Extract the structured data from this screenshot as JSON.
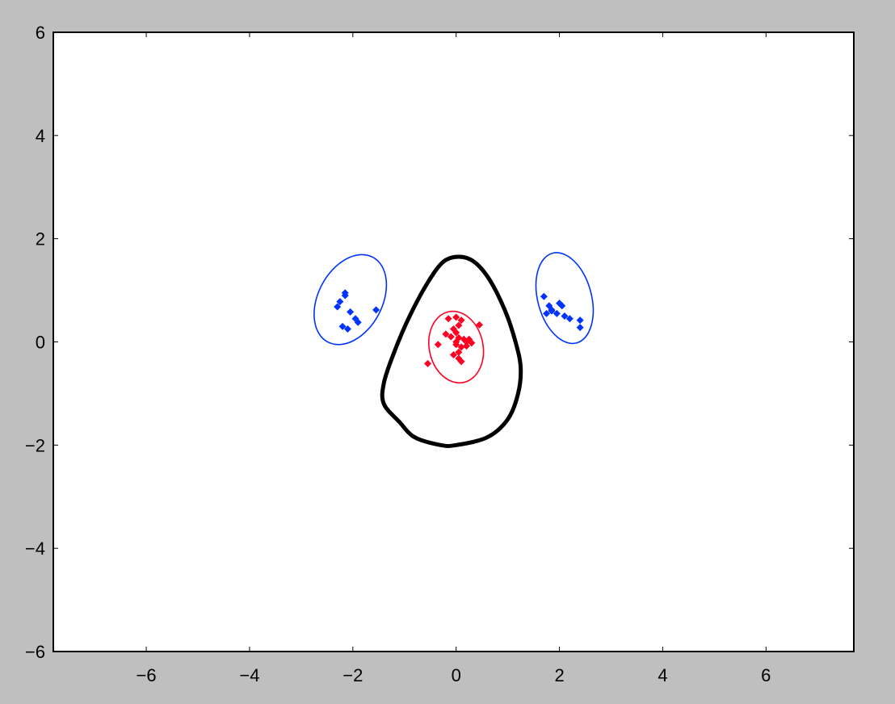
{
  "chart_data": {
    "type": "scatter",
    "xlim": [
      -7.8,
      7.7
    ],
    "ylim": [
      -6,
      6
    ],
    "x_ticks": [
      -6,
      -4,
      -2,
      0,
      2,
      4,
      6
    ],
    "y_ticks": [
      -6,
      -4,
      -2,
      0,
      2,
      4,
      6
    ],
    "x_tick_labels": [
      "−6",
      "−4",
      "−2",
      "0",
      "2",
      "4",
      "6"
    ],
    "y_tick_labels": [
      "−6",
      "−4",
      "−2",
      "0",
      "2",
      "4",
      "6"
    ],
    "grid": false,
    "colors": {
      "figure_bg": "#bfbfbf",
      "axes_bg": "#ffffff",
      "class_a": "#0033ff",
      "class_b": "#ff0022",
      "boundary": "#000000"
    },
    "series": [
      {
        "color": "#0033ff",
        "points": [
          [
            -2.15,
            0.95
          ],
          [
            -2.15,
            0.9
          ],
          [
            -2.25,
            0.78
          ],
          [
            -2.3,
            0.68
          ],
          [
            -2.05,
            0.58
          ],
          [
            -1.95,
            0.45
          ],
          [
            -1.9,
            0.38
          ],
          [
            -1.55,
            0.62
          ],
          [
            -2.2,
            0.3
          ],
          [
            -2.1,
            0.25
          ],
          [
            1.7,
            0.88
          ],
          [
            1.8,
            0.7
          ],
          [
            1.85,
            0.6
          ],
          [
            1.75,
            0.55
          ],
          [
            2.0,
            0.75
          ],
          [
            2.05,
            0.7
          ],
          [
            1.95,
            0.55
          ],
          [
            2.1,
            0.5
          ],
          [
            2.2,
            0.45
          ],
          [
            2.4,
            0.42
          ],
          [
            2.4,
            0.28
          ],
          [
            1.85,
            0.62
          ]
        ]
      },
      {
        "color": "#ff0022",
        "points": [
          [
            -0.15,
            0.45
          ],
          [
            0.0,
            0.48
          ],
          [
            0.1,
            0.42
          ],
          [
            0.05,
            0.32
          ],
          [
            -0.05,
            0.25
          ],
          [
            0.0,
            0.18
          ],
          [
            -0.1,
            0.1
          ],
          [
            0.05,
            0.08
          ],
          [
            0.15,
            0.05
          ],
          [
            0.25,
            0.05
          ],
          [
            0.45,
            0.33
          ],
          [
            -0.35,
            -0.05
          ],
          [
            0.0,
            -0.05
          ],
          [
            0.1,
            -0.1
          ],
          [
            0.2,
            -0.08
          ],
          [
            -0.05,
            -0.25
          ],
          [
            0.05,
            -0.2
          ],
          [
            -0.55,
            -0.42
          ],
          [
            0.05,
            -0.32
          ],
          [
            0.1,
            -0.38
          ],
          [
            0.2,
            0.0
          ],
          [
            -0.2,
            0.15
          ],
          [
            0.3,
            -0.02
          ],
          [
            0.0,
            0.0
          ]
        ]
      }
    ],
    "ellipses": [
      {
        "color": "#0033ff",
        "cx": -2.05,
        "cy": 0.82,
        "rx": 0.62,
        "ry": 0.93,
        "angle_deg": 28
      },
      {
        "color": "#0033ff",
        "cx": 2.1,
        "cy": 0.85,
        "rx": 0.52,
        "ry": 0.9,
        "angle_deg": -15
      },
      {
        "color": "#ff0022",
        "cx": 0.0,
        "cy": -0.1,
        "rx": 0.52,
        "ry": 0.7,
        "angle_deg": -12
      }
    ],
    "boundary": {
      "color": "#000000",
      "points": [
        [
          0.05,
          1.65
        ],
        [
          0.35,
          1.55
        ],
        [
          0.65,
          1.2
        ],
        [
          0.95,
          0.6
        ],
        [
          1.15,
          0.0
        ],
        [
          1.25,
          -0.5
        ],
        [
          1.2,
          -1.0
        ],
        [
          1.0,
          -1.5
        ],
        [
          0.6,
          -1.85
        ],
        [
          0.0,
          -2.0
        ],
        [
          -0.3,
          -2.0
        ],
        [
          -0.8,
          -1.85
        ],
        [
          -1.1,
          -1.55
        ],
        [
          -1.4,
          -1.2
        ],
        [
          -1.4,
          -0.8
        ],
        [
          -1.2,
          -0.2
        ],
        [
          -0.9,
          0.5
        ],
        [
          -0.55,
          1.15
        ],
        [
          -0.25,
          1.55
        ]
      ]
    }
  }
}
